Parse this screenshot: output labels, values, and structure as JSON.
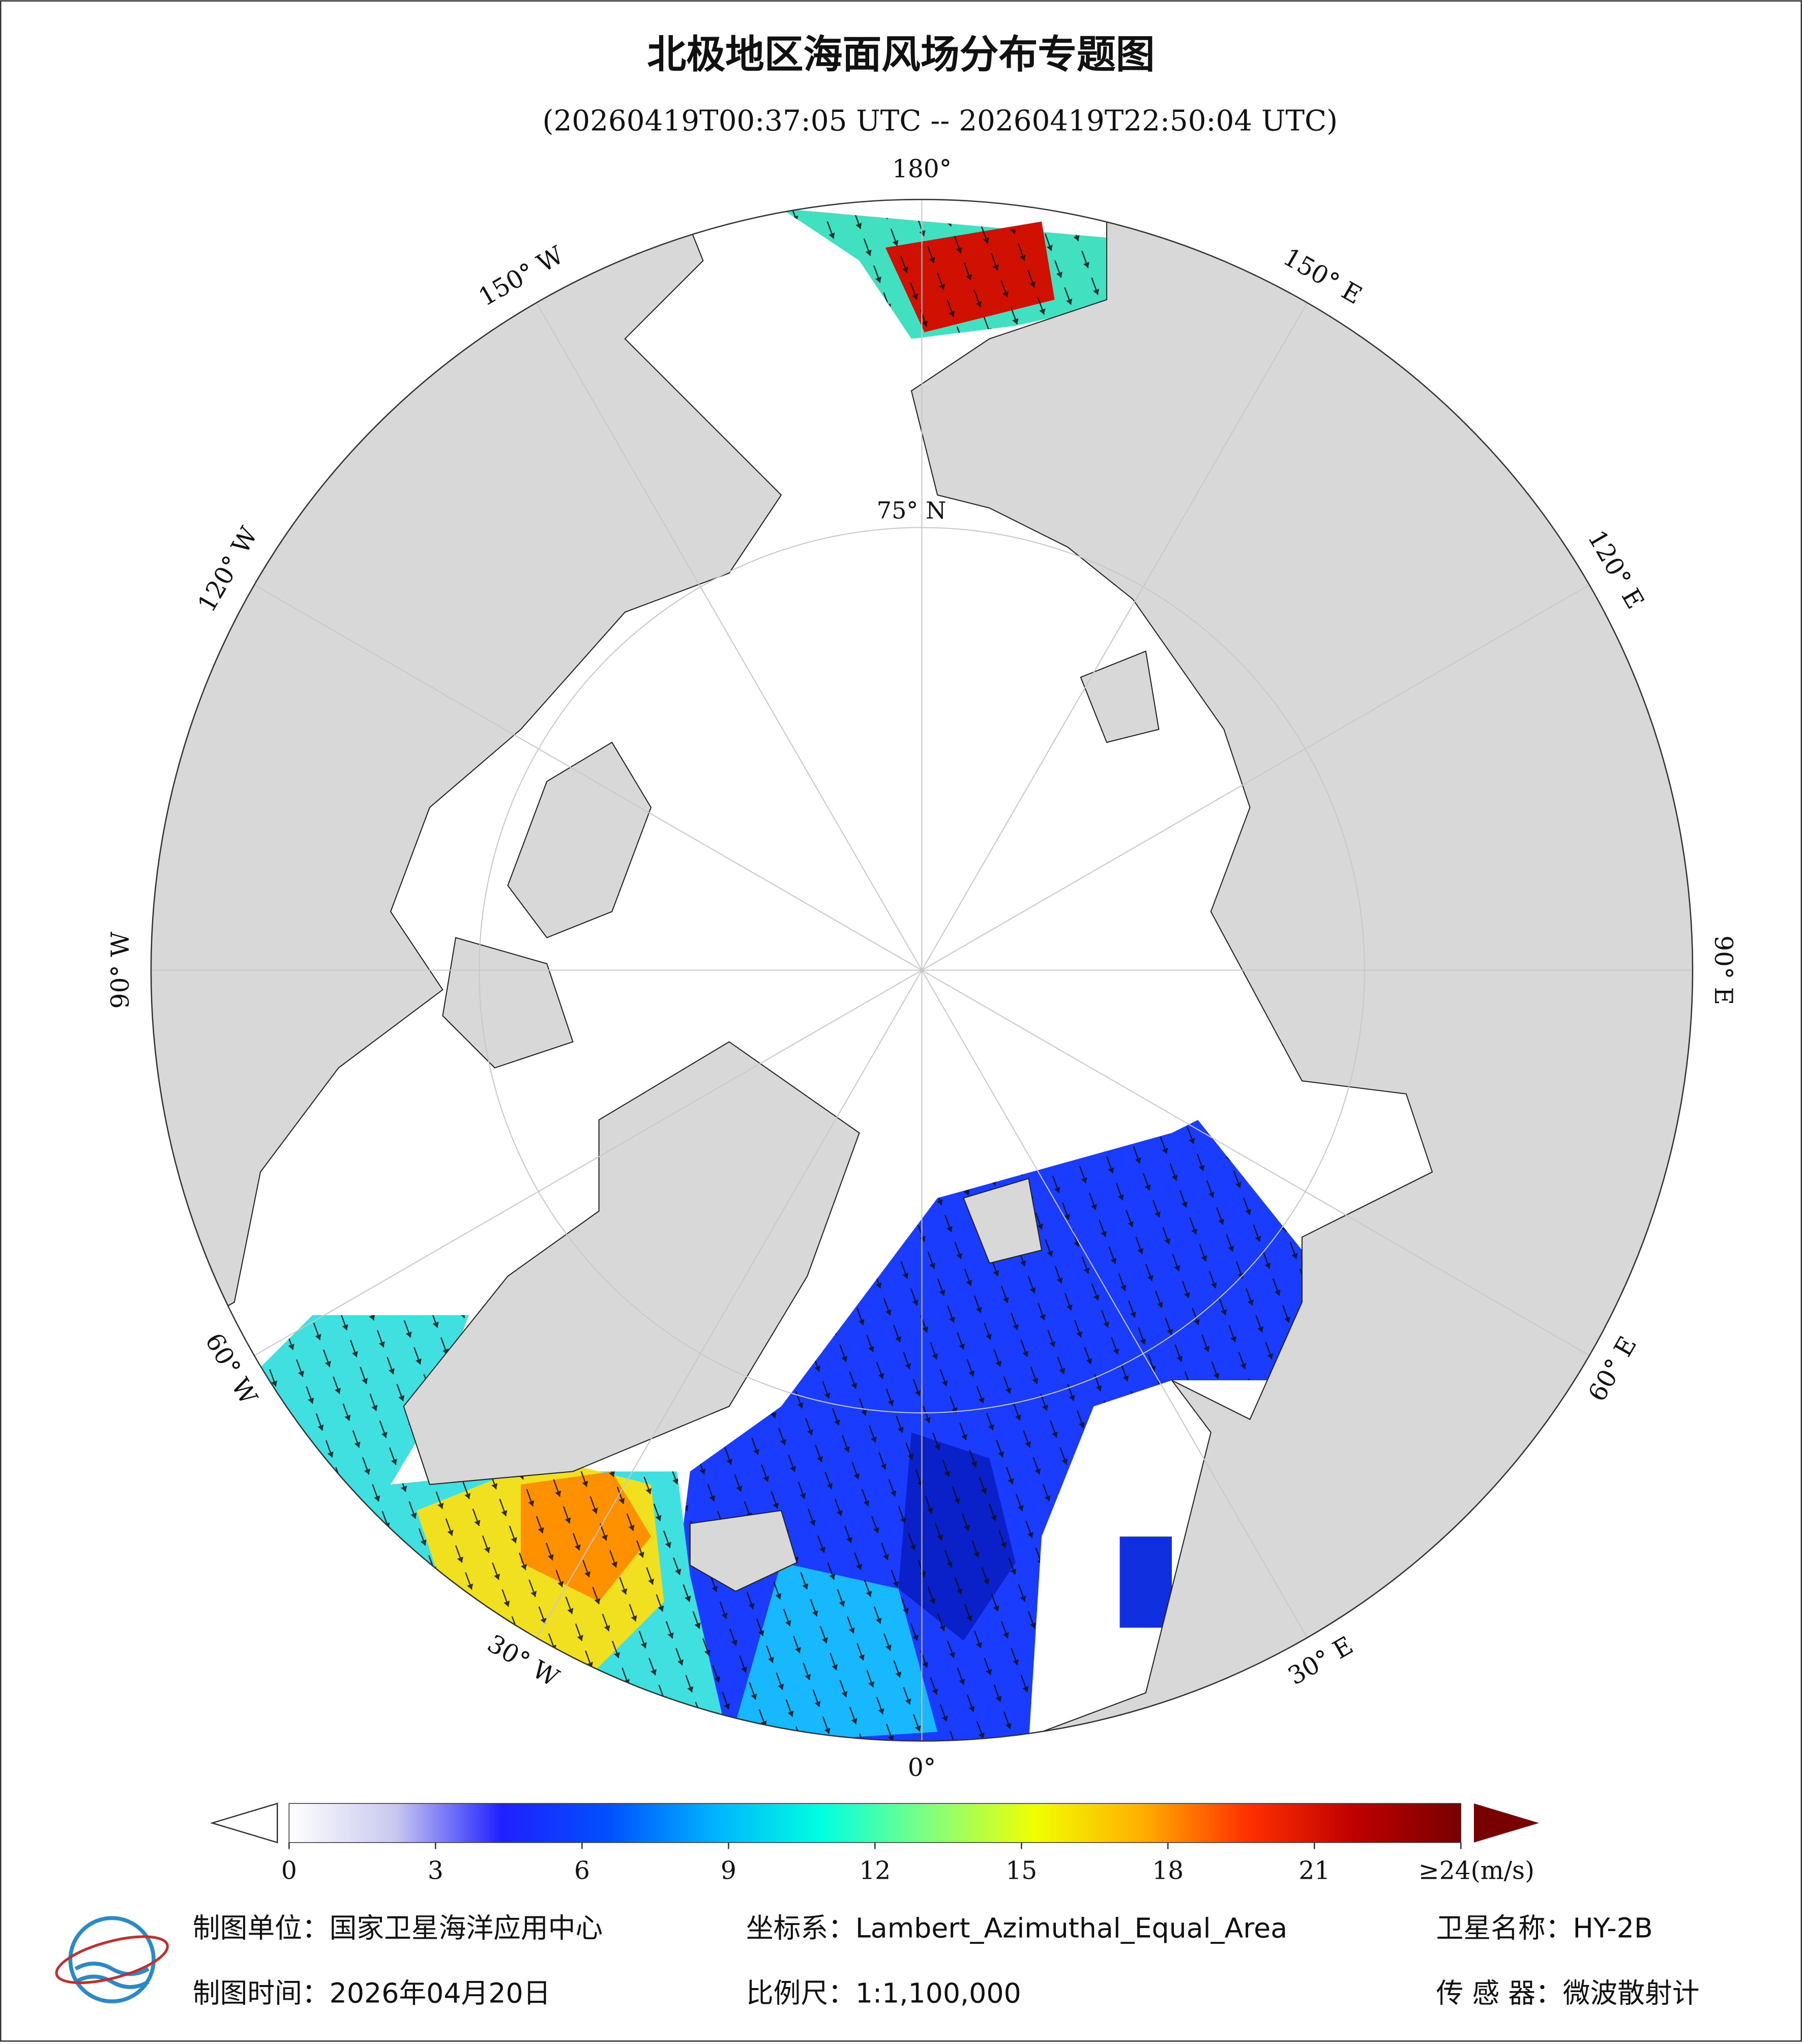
{
  "header": {
    "title": "北极地区海面风场分布专题图",
    "subtitle": "(20260419T00:37:05 UTC -- 20260419T22:50:04 UTC)"
  },
  "map": {
    "longitude_labels": [
      "180°",
      "150° E",
      "120° E",
      "90° E",
      "60° E",
      "30° E",
      "0°",
      "30° W",
      "60° W",
      "90° W",
      "120° W",
      "150° W"
    ],
    "latitude_label": "75° N"
  },
  "colorbar": {
    "range": [
      0,
      24
    ],
    "ticks": [
      0,
      3,
      6,
      9,
      12,
      15,
      18,
      21,
      {
        "value": 24,
        "label": "≥24(m/s)"
      }
    ],
    "colors": [
      "#ffffff",
      "#c8c8f0",
      "#2020ff",
      "#0050ff",
      "#00b4ff",
      "#00ffe0",
      "#80ff80",
      "#f0ff00",
      "#ffb000",
      "#ff3000",
      "#c00000",
      "#780000"
    ]
  },
  "footer": {
    "unit": "制图单位：国家卫星海洋应用中心",
    "coordinate_system": "坐标系：Lambert_Azimuthal_Equal_Area",
    "satellite": "卫星名称：HY-2B",
    "date": "制图时间：2026年04月20日",
    "scale": "比例尺：1:1,100,000",
    "sensor": "传 感 器：微波散射计"
  }
}
